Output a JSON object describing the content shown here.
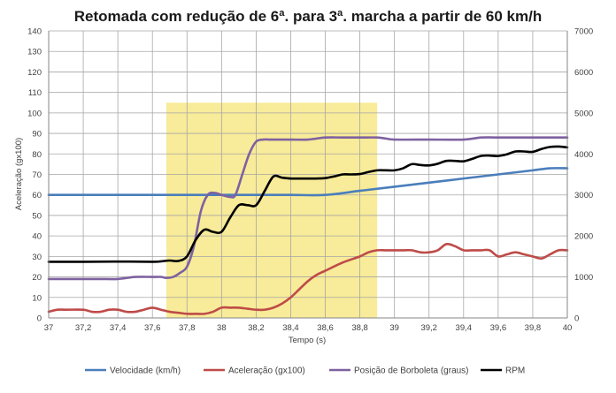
{
  "chart_data": {
    "type": "line",
    "title": "Retomada com redução de 6ª. para 3ª. marcha a partir de 60 km/h",
    "xlabel": "Tempo (s)",
    "ylabel": "Aceleração (gx100)",
    "y2label": "",
    "xlim": [
      37,
      40
    ],
    "ylim": [
      0,
      140
    ],
    "y2lim": [
      0,
      7000
    ],
    "xticks": [
      "37",
      "37,2",
      "37,4",
      "37,6",
      "37,8",
      "38",
      "38,2",
      "38,4",
      "38,6",
      "38,8",
      "39",
      "39,2",
      "39,4",
      "39,6",
      "39,8",
      "40"
    ],
    "yticks": [
      "0",
      "10",
      "20",
      "30",
      "40",
      "50",
      "60",
      "70",
      "80",
      "90",
      "100",
      "110",
      "120",
      "130",
      "140"
    ],
    "y2ticks": [
      "0",
      "1000",
      "2000",
      "3000",
      "4000",
      "5000",
      "6000",
      "7000"
    ],
    "grid": true,
    "highlight_region": {
      "x_from": 37.68,
      "x_to": 38.9,
      "y_from": 0,
      "y_to": 105,
      "color": "#f7e98e"
    },
    "series": [
      {
        "name": "Velocidade (km/h)",
        "color": "#4a7ebb",
        "axis": "left",
        "x": [
          37,
          37.2,
          37.4,
          37.6,
          37.8,
          38,
          38.2,
          38.4,
          38.6,
          38.8,
          39,
          39.2,
          39.4,
          39.6,
          39.8,
          39.9,
          40
        ],
        "y": [
          60,
          60,
          60,
          60,
          60,
          60,
          60,
          60,
          60,
          62,
          64,
          66,
          68,
          70,
          72,
          73,
          73
        ]
      },
      {
        "name": "Aceleração (gx100)",
        "color": "#be4b48",
        "axis": "left",
        "x": [
          37,
          37.05,
          37.1,
          37.2,
          37.25,
          37.3,
          37.35,
          37.4,
          37.45,
          37.5,
          37.55,
          37.6,
          37.65,
          37.7,
          37.75,
          37.8,
          37.85,
          37.9,
          37.95,
          38,
          38.05,
          38.1,
          38.15,
          38.2,
          38.25,
          38.3,
          38.35,
          38.4,
          38.45,
          38.5,
          38.55,
          38.6,
          38.7,
          38.8,
          38.85,
          38.9,
          38.95,
          39,
          39.05,
          39.1,
          39.15,
          39.2,
          39.25,
          39.3,
          39.35,
          39.4,
          39.45,
          39.5,
          39.55,
          39.6,
          39.65,
          39.7,
          39.75,
          39.8,
          39.85,
          39.9,
          39.95,
          40
        ],
        "y": [
          3,
          4,
          4,
          4,
          3,
          3,
          4,
          4,
          3,
          3,
          4,
          5,
          4,
          3,
          2.5,
          2,
          2,
          2,
          3,
          5,
          5,
          5,
          4.5,
          4,
          4,
          5,
          7,
          10,
          14,
          18,
          21,
          23,
          27,
          30,
          32,
          33,
          33,
          33,
          33,
          33,
          32,
          32,
          33,
          36,
          35,
          33,
          33,
          33,
          33,
          30,
          31,
          32,
          31,
          30,
          29,
          31,
          33,
          33
        ]
      },
      {
        "name": "Posição de Borboleta (graus)",
        "color": "#7e61a0",
        "axis": "left",
        "x": [
          37,
          37.2,
          37.3,
          37.4,
          37.5,
          37.6,
          37.65,
          37.68,
          37.72,
          37.76,
          37.8,
          37.84,
          37.88,
          37.92,
          37.96,
          38,
          38.05,
          38.08,
          38.12,
          38.16,
          38.2,
          38.24,
          38.28,
          38.32,
          38.4,
          38.5,
          38.6,
          38.7,
          38.8,
          38.9,
          38.95,
          39,
          39.2,
          39.4,
          39.5,
          39.6,
          39.8,
          40
        ],
        "y": [
          19,
          19,
          19,
          19,
          20,
          20,
          20,
          19.5,
          20,
          22,
          25,
          35,
          52,
          60,
          61,
          60,
          59,
          60,
          70,
          80,
          86,
          87,
          87,
          87,
          87,
          87,
          88,
          88,
          88,
          88,
          87.5,
          87,
          87,
          87,
          88,
          88,
          88,
          88
        ]
      },
      {
        "name": "RPM",
        "color": "#000000",
        "axis": "right",
        "x": [
          37,
          37.2,
          37.4,
          37.6,
          37.65,
          37.7,
          37.75,
          37.8,
          37.85,
          37.9,
          37.95,
          38,
          38.05,
          38.1,
          38.15,
          38.2,
          38.25,
          38.3,
          38.35,
          38.4,
          38.45,
          38.5,
          38.55,
          38.6,
          38.65,
          38.7,
          38.75,
          38.8,
          38.85,
          38.9,
          38.95,
          39,
          39.05,
          39.1,
          39.15,
          39.2,
          39.25,
          39.3,
          39.35,
          39.4,
          39.45,
          39.5,
          39.55,
          39.6,
          39.65,
          39.7,
          39.75,
          39.8,
          39.85,
          39.9,
          39.95,
          40
        ],
        "y": [
          1370,
          1370,
          1375,
          1370,
          1380,
          1400,
          1390,
          1500,
          1900,
          2150,
          2100,
          2100,
          2450,
          2750,
          2750,
          2750,
          3100,
          3450,
          3420,
          3400,
          3400,
          3400,
          3400,
          3410,
          3450,
          3500,
          3500,
          3510,
          3560,
          3600,
          3600,
          3600,
          3650,
          3750,
          3730,
          3720,
          3760,
          3830,
          3830,
          3820,
          3880,
          3950,
          3960,
          3950,
          3990,
          4060,
          4060,
          4050,
          4120,
          4170,
          4180,
          4160
        ]
      }
    ]
  }
}
